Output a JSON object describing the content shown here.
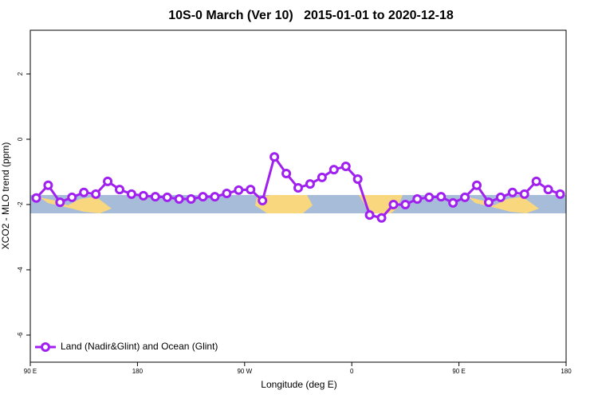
{
  "chart_data": {
    "type": "line",
    "title": "10S-0 March (Ver 10)   2015-01-01 to 2020-12-18",
    "xlabel": "Longitude (deg E)",
    "ylabel": "XCO2 - MLO trend (ppm)",
    "x": [
      95,
      105,
      115,
      125,
      135,
      145,
      155,
      165,
      175,
      185,
      195,
      205,
      215,
      225,
      235,
      245,
      255,
      265,
      275,
      285,
      295,
      305,
      315,
      325,
      335,
      345,
      355,
      365,
      375,
      385,
      395,
      405,
      415,
      425,
      435,
      445,
      455,
      465,
      475,
      485,
      495,
      505,
      515,
      525,
      535
    ],
    "series": [
      {
        "name": "Land (Nadir&Glint) and Ocean (Glint)",
        "color": "#a020f0",
        "values": [
          -1.8,
          -1.41,
          -1.93,
          -1.78,
          -1.63,
          -1.68,
          -1.29,
          -1.54,
          -1.68,
          -1.73,
          -1.76,
          -1.78,
          -1.83,
          -1.83,
          -1.76,
          -1.76,
          -1.66,
          -1.56,
          -1.54,
          -1.88,
          -0.54,
          -1.05,
          -1.49,
          -1.37,
          -1.17,
          -0.93,
          -0.83,
          -1.22,
          -2.32,
          -2.41,
          -2.0,
          -2.0,
          -1.83,
          -1.78,
          -1.76,
          -1.95,
          -1.78,
          -1.41,
          -1.93,
          -1.78,
          -1.63,
          -1.68,
          -1.29,
          -1.54,
          -1.68
        ]
      }
    ],
    "xlim": [
      90,
      540
    ],
    "xticks": [
      {
        "value": 90,
        "label": "90 E"
      },
      180,
      {
        "value": 270,
        "label": "90 W"
      },
      {
        "value": 360,
        "label": "0"
      },
      {
        "value": 450,
        "label": "90 E"
      },
      {
        "value": 540,
        "label": "180"
      }
    ],
    "ylim": [
      -6.83,
      3.34
    ],
    "yticks": [
      -6,
      -4,
      -2,
      0,
      2
    ],
    "legend": "bottom-left"
  }
}
